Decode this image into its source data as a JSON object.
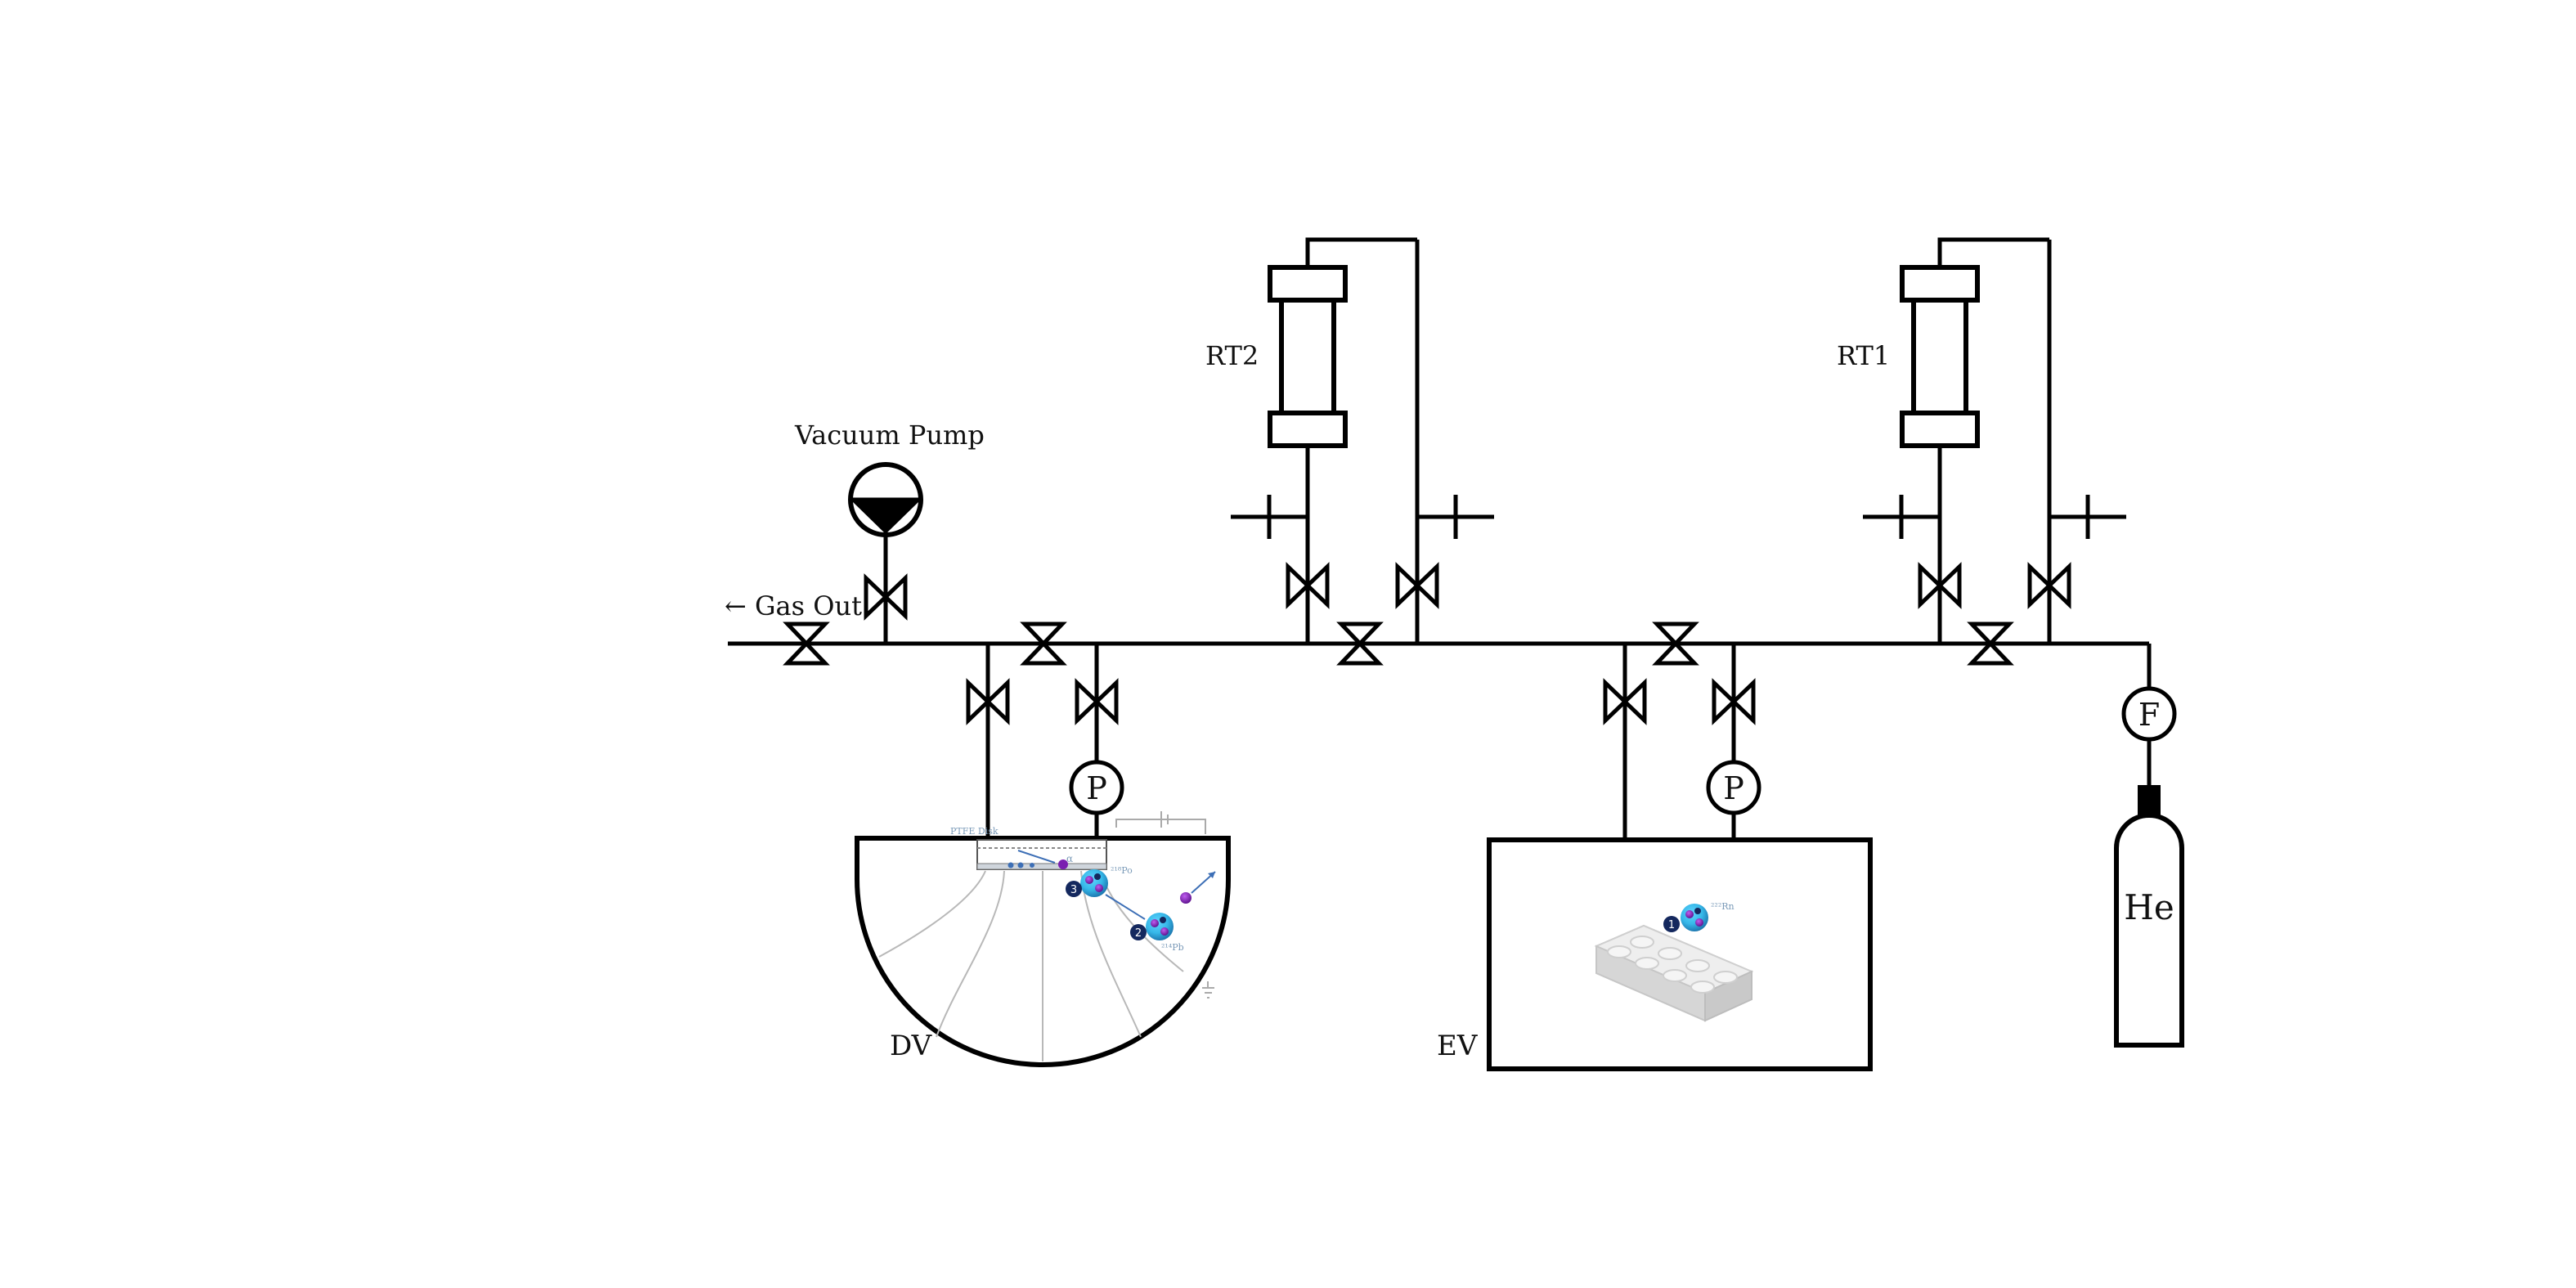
{
  "labels": {
    "gas_out": "← Gas Out",
    "vacuum_pump": "Vacuum Pump",
    "rt2": "RT2",
    "rt1": "RT1",
    "dv": "DV",
    "ev": "EV",
    "helium": "He",
    "pressure_dv": "P",
    "pressure_ev": "P",
    "flow": "F",
    "ptfe_disk": "PTFE Disk",
    "nucleus_1": "1",
    "nucleus_2": "2",
    "nucleus_3": "3",
    "ev_nucleus": "1",
    "alpha": "α",
    "ev_isotope": "²²²Rn",
    "dv_isotope_a": "²¹⁸Po",
    "dv_isotope_b": "²¹⁴Pb"
  },
  "colors": {
    "line": "#000000",
    "nucleus_cyan": "#35b7e8",
    "nucleus_purple": "#7a1fb0",
    "nucleus_navy": "#14285e",
    "annotation_blue": "#3d6fb6",
    "field_line": "#b8b8b8",
    "brick": "#d8d8d8"
  }
}
